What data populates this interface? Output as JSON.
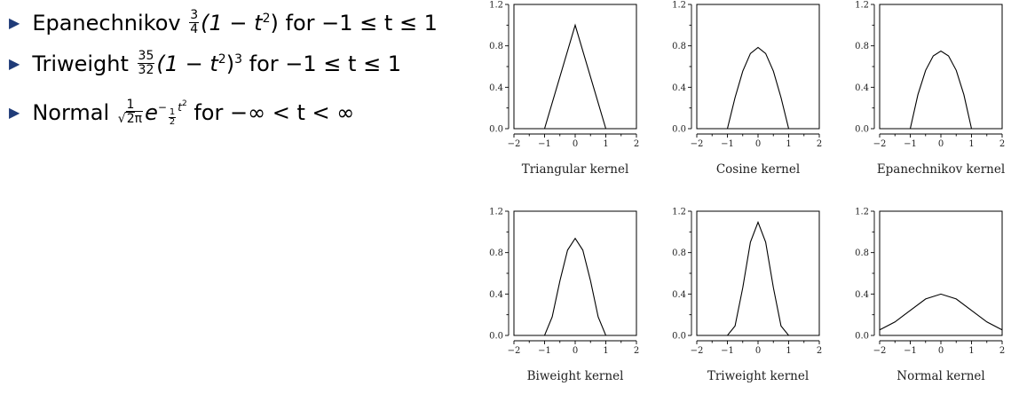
{
  "bullets": {
    "epanechnikov": {
      "name": "Epanechnikov",
      "frac_num": "3",
      "frac_den": "4",
      "formula": "(1 − t",
      "exp": "2",
      "formula_tail": ")",
      "range_text": "for −1 ≤ t ≤ 1"
    },
    "triweight": {
      "name": "Triweight",
      "frac_num": "35",
      "frac_den": "32",
      "formula": "(1 − t",
      "exp": "2",
      "formula_tail": ")",
      "outer_exp": "3",
      "range_text": "for −1 ≤ t ≤ 1"
    },
    "normal": {
      "name": "Normal",
      "frac_num": "1",
      "sqrt_text": "2π",
      "base": "e",
      "exp_sign": "−",
      "exp_frac_num": "1",
      "exp_frac_den": "2",
      "exp_var": "t",
      "exp_power": "2",
      "range_text": "for −∞ < t < ∞"
    }
  },
  "chart_data": [
    {
      "type": "line",
      "title": "Triangular kernel",
      "xlim": [
        -2,
        2
      ],
      "ylim": [
        0,
        1.2
      ],
      "xticks": [
        "−2",
        "−1",
        "0",
        "1",
        "2"
      ],
      "yticks": [
        "0.0",
        "0.4",
        "0.8",
        "1.2"
      ],
      "series": [
        {
          "x": [
            -2,
            -1,
            0,
            1,
            2
          ],
          "y": [
            0,
            0,
            1.0,
            0,
            0
          ]
        }
      ]
    },
    {
      "type": "line",
      "title": "Cosine kernel",
      "xlim": [
        -2,
        2
      ],
      "ylim": [
        0,
        1.2
      ],
      "xticks": [
        "−2",
        "−1",
        "0",
        "1",
        "2"
      ],
      "yticks": [
        "0.0",
        "0.4",
        "0.8",
        "1.2"
      ],
      "series": [
        {
          "x": [
            -2,
            -1,
            -0.75,
            -0.5,
            -0.25,
            0,
            0.25,
            0.5,
            0.75,
            1,
            2
          ],
          "y": [
            0,
            0,
            0.3,
            0.555,
            0.726,
            0.785,
            0.726,
            0.555,
            0.3,
            0,
            0
          ]
        }
      ]
    },
    {
      "type": "line",
      "title": "Epanechnikov kernel",
      "xlim": [
        -2,
        2
      ],
      "ylim": [
        0,
        1.2
      ],
      "xticks": [
        "−2",
        "−1",
        "0",
        "1",
        "2"
      ],
      "yticks": [
        "0.0",
        "0.4",
        "0.8",
        "1.2"
      ],
      "series": [
        {
          "x": [
            -2,
            -1,
            -0.75,
            -0.5,
            -0.25,
            0,
            0.25,
            0.5,
            0.75,
            1,
            2
          ],
          "y": [
            0,
            0,
            0.328,
            0.563,
            0.703,
            0.75,
            0.703,
            0.563,
            0.328,
            0,
            0
          ]
        }
      ]
    },
    {
      "type": "line",
      "title": "Biweight kernel",
      "xlim": [
        -2,
        2
      ],
      "ylim": [
        0,
        1.2
      ],
      "xticks": [
        "−2",
        "−1",
        "0",
        "1",
        "2"
      ],
      "yticks": [
        "0.0",
        "0.4",
        "0.8",
        "1.2"
      ],
      "series": [
        {
          "x": [
            -2,
            -1,
            -0.75,
            -0.5,
            -0.25,
            0,
            0.25,
            0.5,
            0.75,
            1,
            2
          ],
          "y": [
            0,
            0,
            0.179,
            0.527,
            0.824,
            0.9375,
            0.824,
            0.527,
            0.179,
            0,
            0
          ]
        }
      ]
    },
    {
      "type": "line",
      "title": "Triweight kernel",
      "xlim": [
        -2,
        2
      ],
      "ylim": [
        0,
        1.2
      ],
      "xticks": [
        "−2",
        "−1",
        "0",
        "1",
        "2"
      ],
      "yticks": [
        "0.0",
        "0.4",
        "0.8",
        "1.2"
      ],
      "series": [
        {
          "x": [
            -2,
            -1,
            -0.75,
            -0.5,
            -0.25,
            0,
            0.25,
            0.5,
            0.75,
            1,
            2
          ],
          "y": [
            0,
            0,
            0.091,
            0.461,
            0.901,
            1.094,
            0.901,
            0.461,
            0.091,
            0,
            0
          ]
        }
      ]
    },
    {
      "type": "line",
      "title": "Normal kernel",
      "xlim": [
        -2,
        2
      ],
      "ylim": [
        0,
        1.2
      ],
      "xticks": [
        "−2",
        "−1",
        "0",
        "1",
        "2"
      ],
      "yticks": [
        "0.0",
        "0.4",
        "0.8",
        "1.2"
      ],
      "series": [
        {
          "x": [
            -2,
            -1.5,
            -1,
            -0.5,
            0,
            0.5,
            1,
            1.5,
            2
          ],
          "y": [
            0.054,
            0.13,
            0.242,
            0.352,
            0.399,
            0.352,
            0.242,
            0.13,
            0.054
          ]
        }
      ]
    }
  ]
}
